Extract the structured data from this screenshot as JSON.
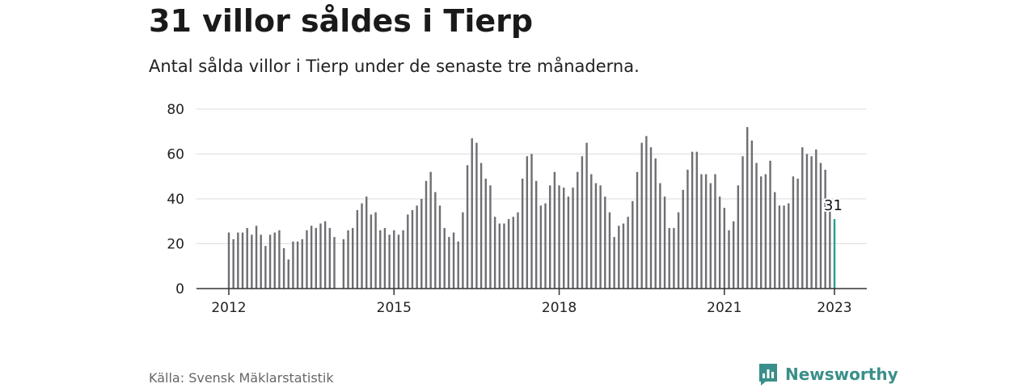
{
  "header": {
    "title": "31 villor såldes i Tierp",
    "subtitle": "Antal sålda villor i Tierp under de senaste tre månaderna."
  },
  "footer": {
    "source": "Källa: Svensk Mäklarstatistik",
    "brand": "Newsworthy",
    "brand_icon": "newsworthy-logo-icon"
  },
  "colors": {
    "bar": "#6e6e73",
    "highlight": "#2a9d8f",
    "grid": "#dddddd",
    "axis": "#333333",
    "brand": "#3a8f8a"
  },
  "chart_data": {
    "type": "bar",
    "title": "31 villor såldes i Tierp",
    "subtitle": "Antal sålda villor i Tierp under de senaste tre månaderna.",
    "xlabel": "",
    "ylabel": "",
    "x_start": "2012-01",
    "x_ticks": [
      "2012",
      "2015",
      "2018",
      "2021",
      "2023"
    ],
    "ylim": [
      0,
      80
    ],
    "y_ticks": [
      0,
      20,
      40,
      60,
      80
    ],
    "grid": true,
    "series": [
      {
        "values": [
          25,
          22,
          25,
          25,
          27,
          24,
          28,
          24,
          19,
          24,
          25,
          26,
          18,
          13,
          21,
          21,
          22,
          26,
          28,
          27,
          29,
          30,
          27,
          23,
          null,
          22,
          26,
          27,
          35,
          38,
          41,
          33,
          34,
          26,
          27,
          24,
          26,
          24,
          26,
          33,
          35,
          37,
          40,
          48,
          52,
          43,
          37,
          27,
          23,
          25,
          21,
          34,
          55,
          67,
          65,
          56,
          49,
          46,
          32,
          29,
          29,
          31,
          32,
          34,
          49,
          59,
          60,
          48,
          37,
          38,
          46,
          52,
          46,
          45,
          41,
          45,
          52,
          59,
          65,
          51,
          47,
          46,
          41,
          34,
          23,
          28,
          29,
          32,
          39,
          52,
          65,
          68,
          63,
          58,
          47,
          41,
          27,
          27,
          34,
          44,
          53,
          61,
          61,
          51,
          51,
          47,
          51,
          41,
          36,
          26,
          30,
          46,
          59,
          72,
          66,
          56,
          50,
          51,
          57,
          43,
          37,
          37,
          38,
          50,
          49,
          63,
          60,
          59,
          62,
          56,
          53,
          38,
          31
        ]
      }
    ],
    "highlight": {
      "index": 132,
      "label": "31"
    }
  }
}
